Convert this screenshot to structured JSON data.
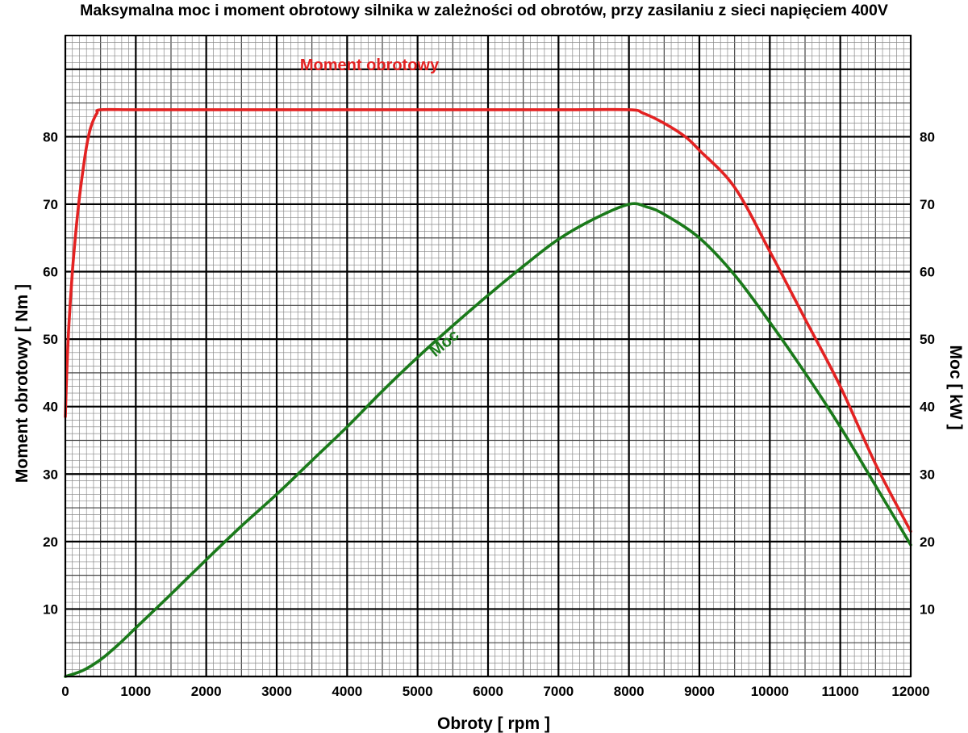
{
  "chart_data": {
    "type": "line",
    "title": "Maksymalna moc i moment obrotowy silnika w zależności od obrotów, przy zasilaniu z sieci napięciem 400V",
    "xlabel": "Obroty [ rpm ]",
    "ylabel_left": "Moment obrotowy [ Nm ]",
    "ylabel_right": "Moc [ kW ]",
    "xlim": [
      0,
      12000
    ],
    "ylim": [
      0,
      95
    ],
    "x_ticks": [
      "0",
      "1000",
      "2000",
      "3000",
      "4000",
      "5000",
      "6000",
      "7000",
      "8000",
      "9000",
      "10000",
      "11000",
      "12000"
    ],
    "y_ticks_left": [
      "10",
      "20",
      "30",
      "40",
      "50",
      "60",
      "70",
      "80"
    ],
    "y_ticks_right": [
      "10",
      "20",
      "30",
      "40",
      "50",
      "60",
      "70",
      "80"
    ],
    "grid": true,
    "series": [
      {
        "name": "Moment obrotowy",
        "color": "#e32222",
        "axis": "left",
        "points": [
          [
            0,
            38.5
          ],
          [
            20,
            45
          ],
          [
            50,
            52
          ],
          [
            100,
            60
          ],
          [
            150,
            66
          ],
          [
            200,
            71
          ],
          [
            250,
            75
          ],
          [
            300,
            78.5
          ],
          [
            350,
            81
          ],
          [
            400,
            82.5
          ],
          [
            450,
            83.5
          ],
          [
            500,
            84
          ],
          [
            1000,
            84
          ],
          [
            2000,
            84
          ],
          [
            3000,
            84
          ],
          [
            4000,
            84
          ],
          [
            5000,
            84
          ],
          [
            6000,
            84
          ],
          [
            7000,
            84
          ],
          [
            8000,
            84
          ],
          [
            8200,
            83.5
          ],
          [
            8500,
            82
          ],
          [
            8800,
            80
          ],
          [
            9000,
            78
          ],
          [
            9500,
            72.5
          ],
          [
            10000,
            63
          ],
          [
            10500,
            53
          ],
          [
            11000,
            43
          ],
          [
            11500,
            31.5
          ],
          [
            12000,
            21.5
          ]
        ]
      },
      {
        "name": "Moc",
        "color": "#1a7a1a",
        "axis": "right",
        "points": [
          [
            0,
            0
          ],
          [
            250,
            0.9
          ],
          [
            500,
            2.5
          ],
          [
            750,
            4.7
          ],
          [
            1000,
            7.2
          ],
          [
            1500,
            12.2
          ],
          [
            2000,
            17.3
          ],
          [
            2500,
            22.3
          ],
          [
            3000,
            27
          ],
          [
            3500,
            32
          ],
          [
            4000,
            37
          ],
          [
            4500,
            42.3
          ],
          [
            5000,
            47.3
          ],
          [
            5500,
            52
          ],
          [
            6000,
            56.5
          ],
          [
            6500,
            60.8
          ],
          [
            7000,
            64.8
          ],
          [
            7500,
            67.8
          ],
          [
            8000,
            70
          ],
          [
            8250,
            69.6
          ],
          [
            8500,
            68.5
          ],
          [
            9000,
            65
          ],
          [
            9500,
            59.5
          ],
          [
            10000,
            52.5
          ],
          [
            10500,
            45
          ],
          [
            11000,
            37
          ],
          [
            11500,
            28.3
          ],
          [
            12000,
            19.5
          ]
        ]
      }
    ]
  }
}
